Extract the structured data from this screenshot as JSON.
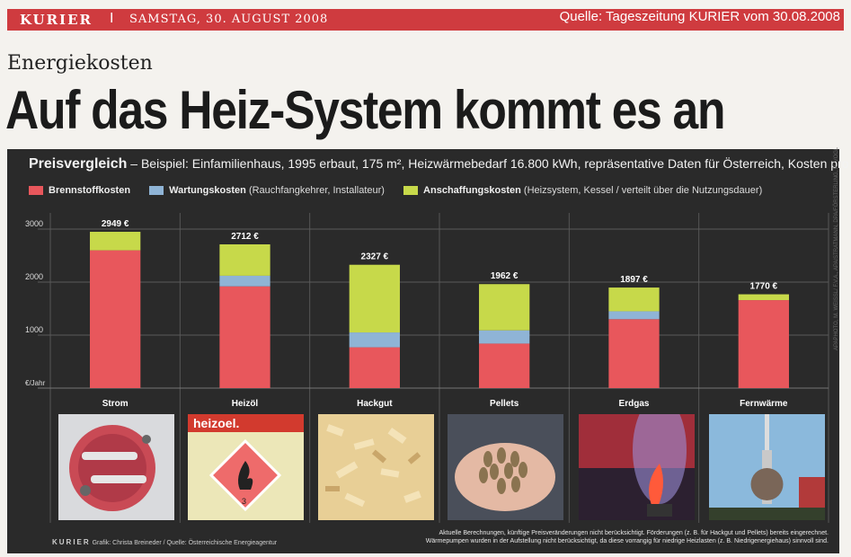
{
  "masthead": {
    "brand": "KURIER",
    "separator": "I",
    "date": "SAMSTAG, 30. AUGUST 2008",
    "source_note": "Quelle:  Tageszeitung KURIER vom 30.08.2008"
  },
  "kicker": "Energiekosten",
  "headline": "Auf das Heiz-System kommt es an",
  "subtitle": {
    "bold": "Preisvergleich",
    "text": " – Beispiel: Einfamilienhaus, 1995 erbaut, 175 m², Heizwärmebedarf 16.800 kWh, repräsentative Daten für Österreich, Kosten pro Jahr"
  },
  "legend": [
    {
      "name": "Brennstoffkosten",
      "detail": "",
      "color": "#e8575c"
    },
    {
      "name": "Wartungskosten",
      "detail": " (Rauchfangkehrer, Installateur)",
      "color": "#8fb4d6"
    },
    {
      "name": "Anschaffungskosten",
      "detail": " (Heizsystem, Kessel / verteilt über die Nutzungsdauer)",
      "color": "#c7d94a"
    }
  ],
  "chart_data": {
    "type": "bar",
    "stacked": true,
    "categories": [
      "Strom",
      "Heizöl",
      "Hackgut",
      "Pellets",
      "Erdgas",
      "Fernwärme"
    ],
    "series": [
      {
        "name": "Brennstoffkosten",
        "color": "#e8575c",
        "values": [
          2600,
          1920,
          770,
          840,
          1300,
          1660
        ]
      },
      {
        "name": "Wartungskosten",
        "color": "#8fb4d6",
        "values": [
          0,
          200,
          280,
          250,
          150,
          0
        ]
      },
      {
        "name": "Anschaffungskosten",
        "color": "#c7d94a",
        "values": [
          349,
          592,
          1277,
          872,
          447,
          110
        ]
      }
    ],
    "totals_labels": [
      "2949 €",
      "2712 €",
      "2327 €",
      "1962 €",
      "1897 €",
      "1770 €"
    ],
    "yticks": [
      3000,
      2000,
      1000
    ],
    "ylabel": "€/Jahr",
    "ylim": [
      0,
      3000
    ],
    "grid": true
  },
  "photos": [
    {
      "category": "Strom",
      "icon": "electric-heater-icon"
    },
    {
      "category": "Heizöl",
      "icon": "oil-hazard-sign-icon",
      "text": "heizoel.",
      "sign_number": "3"
    },
    {
      "category": "Hackgut",
      "icon": "wood-chips-icon"
    },
    {
      "category": "Pellets",
      "icon": "pellets-icon"
    },
    {
      "category": "Erdgas",
      "icon": "gas-flame-icon"
    },
    {
      "category": "Fernwärme",
      "icon": "tv-tower-icon"
    }
  ],
  "credit": {
    "brand": "KURIER",
    "text": " Grafik: Christa Breineder / Quelle: Österreichische Energieagentur"
  },
  "footnote": [
    "Aktuelle Berechnungen, künftige Preisveränderungen nicht berücksichtigt. Förderungen (z. B. für Hackgut und Pellets) bereits eingerechnet.",
    "Wärmepumpen wurden in der Aufstellung nicht berücksichtigt, da diese vorrangig für niedrige Heizlasten (z. B. Niedrigenergiehaus) sinnvoll sind."
  ],
  "side_credit": "APAPHOTO, M. WEISSL/ F.V.A., APA/STRATMANN, DPA/FÖRSTERLING, R. VOGL"
}
